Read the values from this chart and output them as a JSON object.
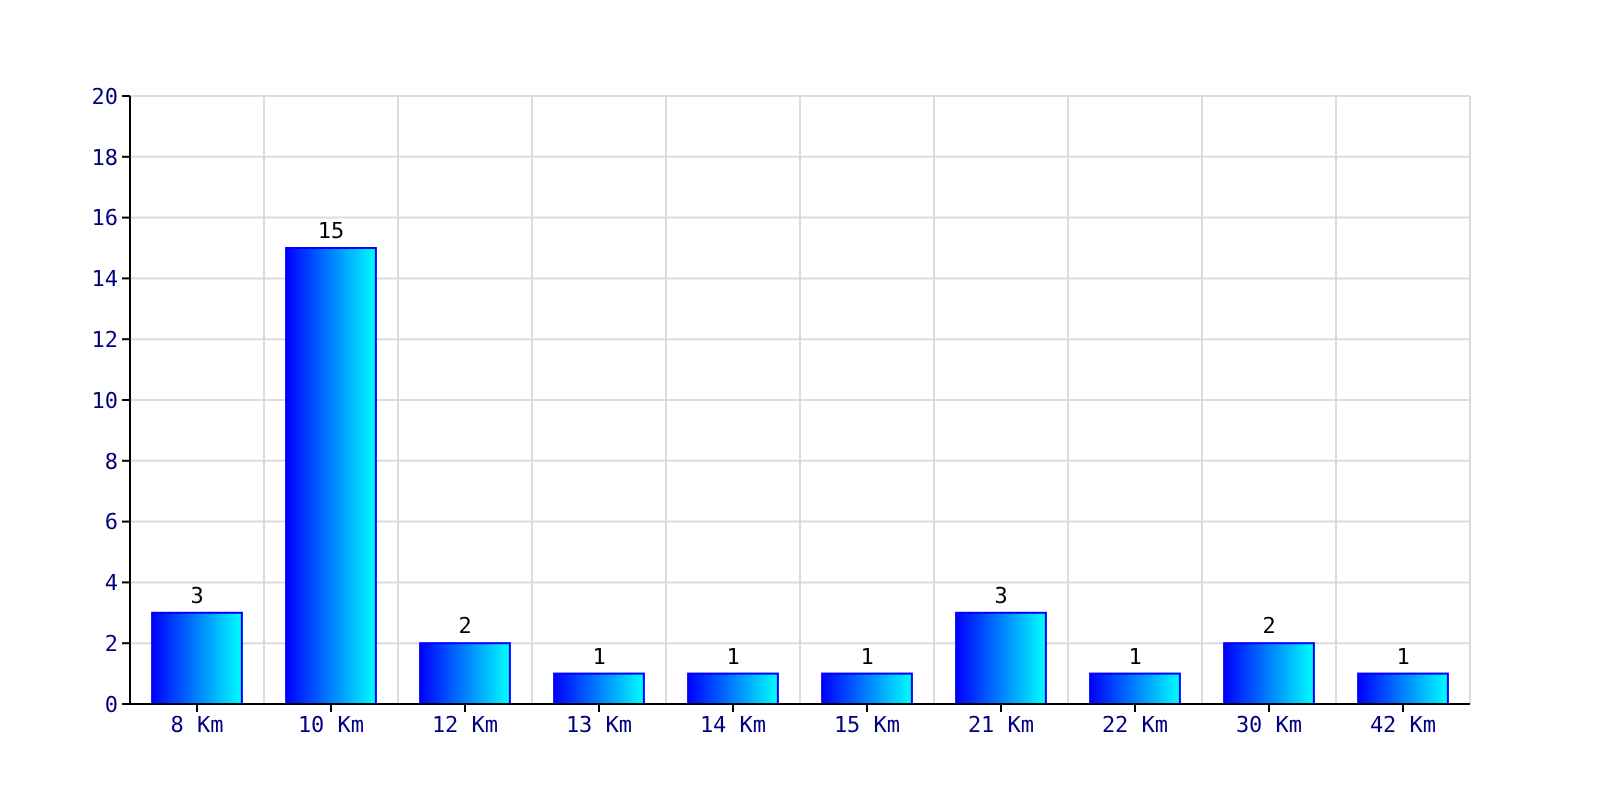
{
  "chart_data": {
    "type": "bar",
    "categories": [
      "8 Km",
      "10 Km",
      "12 Km",
      "13 Km",
      "14 Km",
      "15 Km",
      "21 Km",
      "22 Km",
      "30 Km",
      "42 Km"
    ],
    "values": [
      3,
      15,
      2,
      1,
      1,
      1,
      3,
      1,
      2,
      1
    ],
    "color": "#0000ff",
    "ylim": [
      0,
      20
    ],
    "yticks": [
      0,
      2,
      4,
      6,
      8,
      10,
      12,
      14,
      16,
      18,
      20
    ],
    "grid": true,
    "data_labels": true
  }
}
